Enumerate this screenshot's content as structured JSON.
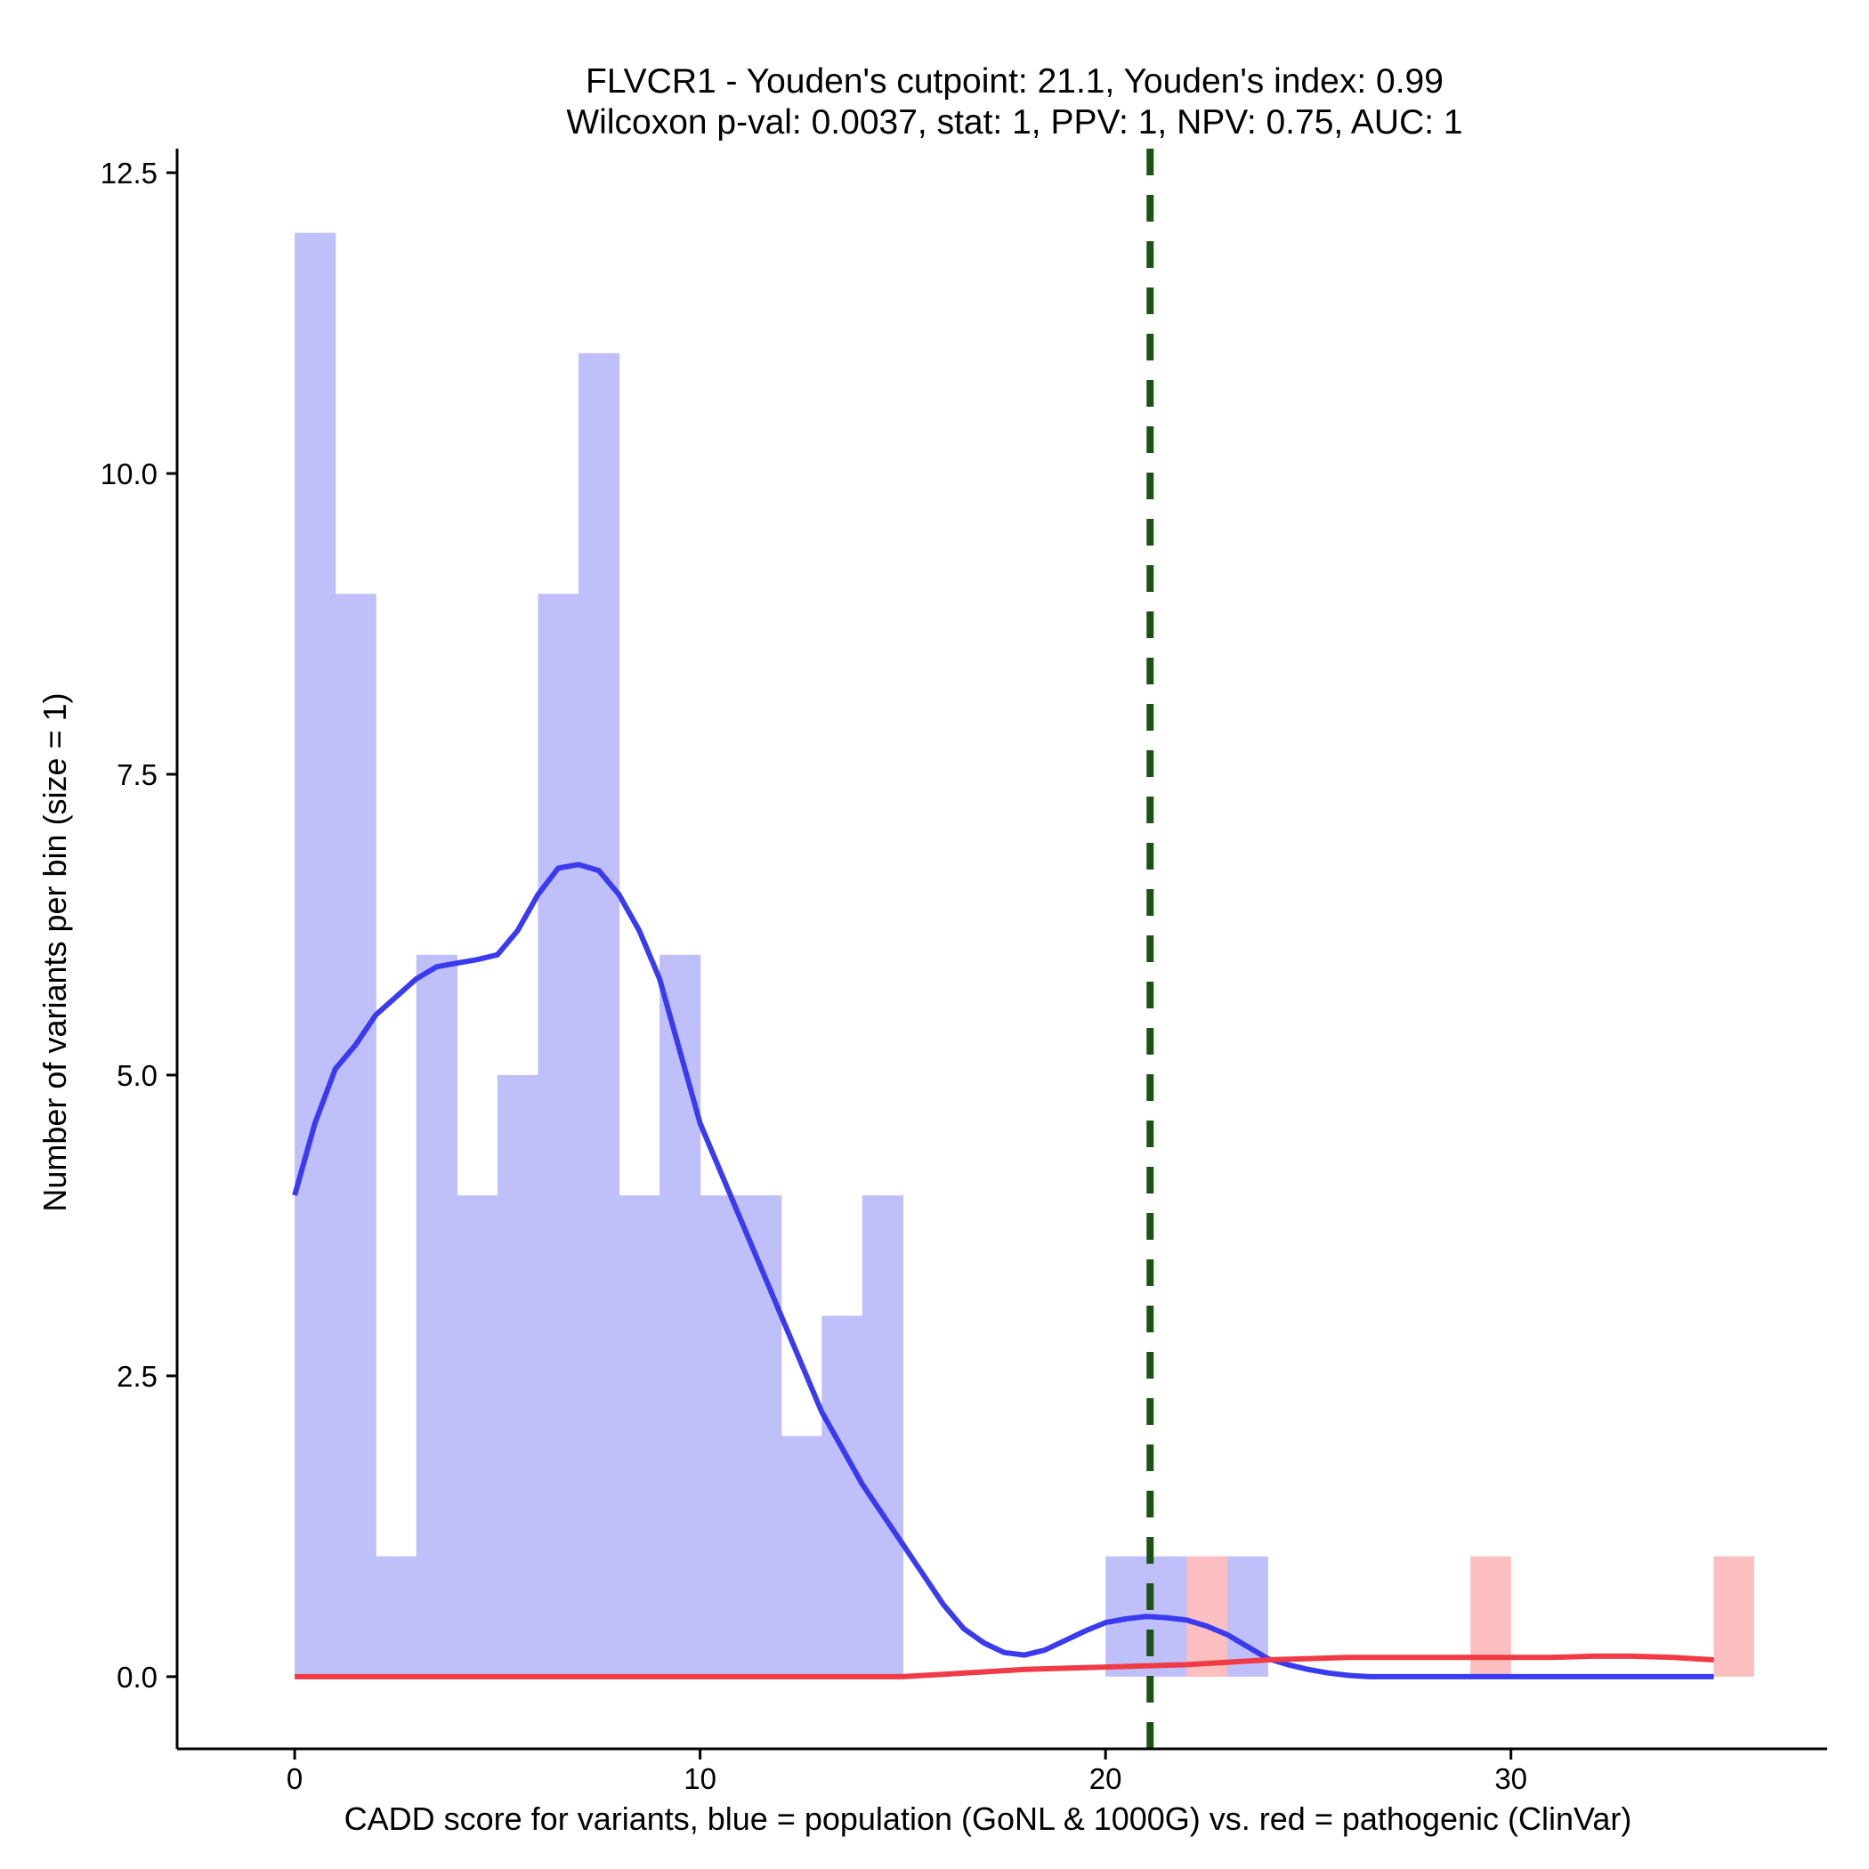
{
  "chart_data": {
    "type": "histogram",
    "title_line1": "FLVCR1 - Youden's cutpoint: 21.1, Youden's index: 0.99",
    "title_line2": "Wilcoxon p-val: 0.0037, stat: 1, PPV: 1, NPV: 0.75, AUC: 1",
    "xlabel": "CADD score for variants, blue = population (GoNL & 1000G) vs. red = pathogenic (ClinVar)",
    "ylabel": "Number of variants per bin (size = 1)",
    "xlim": [
      -2.9,
      37.8
    ],
    "ylim": [
      -0.6,
      12.7
    ],
    "x_ticks": [
      0,
      10,
      20,
      30
    ],
    "x_tick_labels": [
      "0",
      "10",
      "20",
      "30"
    ],
    "y_ticks": [
      0,
      2.5,
      5,
      7.5,
      10,
      12.5
    ],
    "y_tick_labels": [
      "0.0",
      "2.5",
      "5.0",
      "7.5",
      "10.0",
      "12.5"
    ],
    "bin_size": 1,
    "cutpoint": 21.1,
    "colors": {
      "population_bar": "#bfbffa",
      "pathogenic_bar": "#fcbfbf",
      "population_line": "#3a3af0",
      "pathogenic_line": "#f03a46",
      "cutpoint_line": "#1c5216",
      "axis": "#000000"
    },
    "series": [
      {
        "name": "population (GoNL & 1000G)",
        "color": "blue",
        "bins": [
          {
            "start": 0,
            "count": 12
          },
          {
            "start": 1,
            "count": 9
          },
          {
            "start": 2,
            "count": 1
          },
          {
            "start": 3,
            "count": 6
          },
          {
            "start": 4,
            "count": 4
          },
          {
            "start": 5,
            "count": 5
          },
          {
            "start": 6,
            "count": 9
          },
          {
            "start": 7,
            "count": 11
          },
          {
            "start": 8,
            "count": 4
          },
          {
            "start": 9,
            "count": 6
          },
          {
            "start": 10,
            "count": 4
          },
          {
            "start": 11,
            "count": 4
          },
          {
            "start": 12,
            "count": 2
          },
          {
            "start": 13,
            "count": 3
          },
          {
            "start": 14,
            "count": 4
          },
          {
            "start": 20,
            "count": 1
          },
          {
            "start": 21,
            "count": 1
          },
          {
            "start": 22,
            "count": 1
          },
          {
            "start": 23,
            "count": 1
          }
        ],
        "density_curve": [
          [
            0,
            4.0
          ],
          [
            0.5,
            4.6
          ],
          [
            1,
            5.05
          ],
          [
            1.5,
            5.25
          ],
          [
            2,
            5.5
          ],
          [
            2.5,
            5.65
          ],
          [
            3,
            5.8
          ],
          [
            3.5,
            5.9
          ],
          [
            4,
            5.93
          ],
          [
            4.5,
            5.96
          ],
          [
            5,
            6.0
          ],
          [
            5.5,
            6.2
          ],
          [
            6,
            6.5
          ],
          [
            6.5,
            6.72
          ],
          [
            7,
            6.75
          ],
          [
            7.5,
            6.7
          ],
          [
            8,
            6.5
          ],
          [
            8.5,
            6.2
          ],
          [
            9,
            5.8
          ],
          [
            9.5,
            5.2
          ],
          [
            10,
            4.6
          ],
          [
            10.5,
            4.2
          ],
          [
            11,
            3.8
          ],
          [
            11.5,
            3.4
          ],
          [
            12,
            3.0
          ],
          [
            12.5,
            2.6
          ],
          [
            13,
            2.2
          ],
          [
            13.5,
            1.9
          ],
          [
            14,
            1.6
          ],
          [
            14.5,
            1.35
          ],
          [
            15,
            1.1
          ],
          [
            15.5,
            0.85
          ],
          [
            16,
            0.6
          ],
          [
            16.5,
            0.4
          ],
          [
            17,
            0.28
          ],
          [
            17.5,
            0.2
          ],
          [
            18,
            0.18
          ],
          [
            18.5,
            0.22
          ],
          [
            19,
            0.3
          ],
          [
            19.5,
            0.38
          ],
          [
            20,
            0.45
          ],
          [
            20.5,
            0.48
          ],
          [
            21,
            0.5
          ],
          [
            21.5,
            0.49
          ],
          [
            22,
            0.47
          ],
          [
            22.5,
            0.42
          ],
          [
            23,
            0.35
          ],
          [
            23.5,
            0.25
          ],
          [
            24,
            0.15
          ],
          [
            24.5,
            0.1
          ],
          [
            25,
            0.06
          ],
          [
            25.5,
            0.03
          ],
          [
            26,
            0.01
          ],
          [
            26.5,
            0.0
          ],
          [
            27,
            0.0
          ],
          [
            30,
            0.0
          ],
          [
            35,
            0.0
          ]
        ]
      },
      {
        "name": "pathogenic (ClinVar)",
        "color": "red",
        "bins": [
          {
            "start": 22,
            "count": 1
          },
          {
            "start": 29,
            "count": 1
          },
          {
            "start": 35,
            "count": 1
          }
        ],
        "density_curve": [
          [
            0,
            0.0
          ],
          [
            15,
            0.0
          ],
          [
            16,
            0.02
          ],
          [
            17,
            0.04
          ],
          [
            18,
            0.06
          ],
          [
            19,
            0.07
          ],
          [
            20,
            0.08
          ],
          [
            21,
            0.09
          ],
          [
            22,
            0.1
          ],
          [
            23,
            0.12
          ],
          [
            24,
            0.14
          ],
          [
            25,
            0.15
          ],
          [
            26,
            0.16
          ],
          [
            27,
            0.16
          ],
          [
            28,
            0.16
          ],
          [
            29,
            0.16
          ],
          [
            30,
            0.16
          ],
          [
            31,
            0.16
          ],
          [
            32,
            0.17
          ],
          [
            33,
            0.17
          ],
          [
            34,
            0.16
          ],
          [
            35,
            0.14
          ]
        ]
      }
    ]
  }
}
